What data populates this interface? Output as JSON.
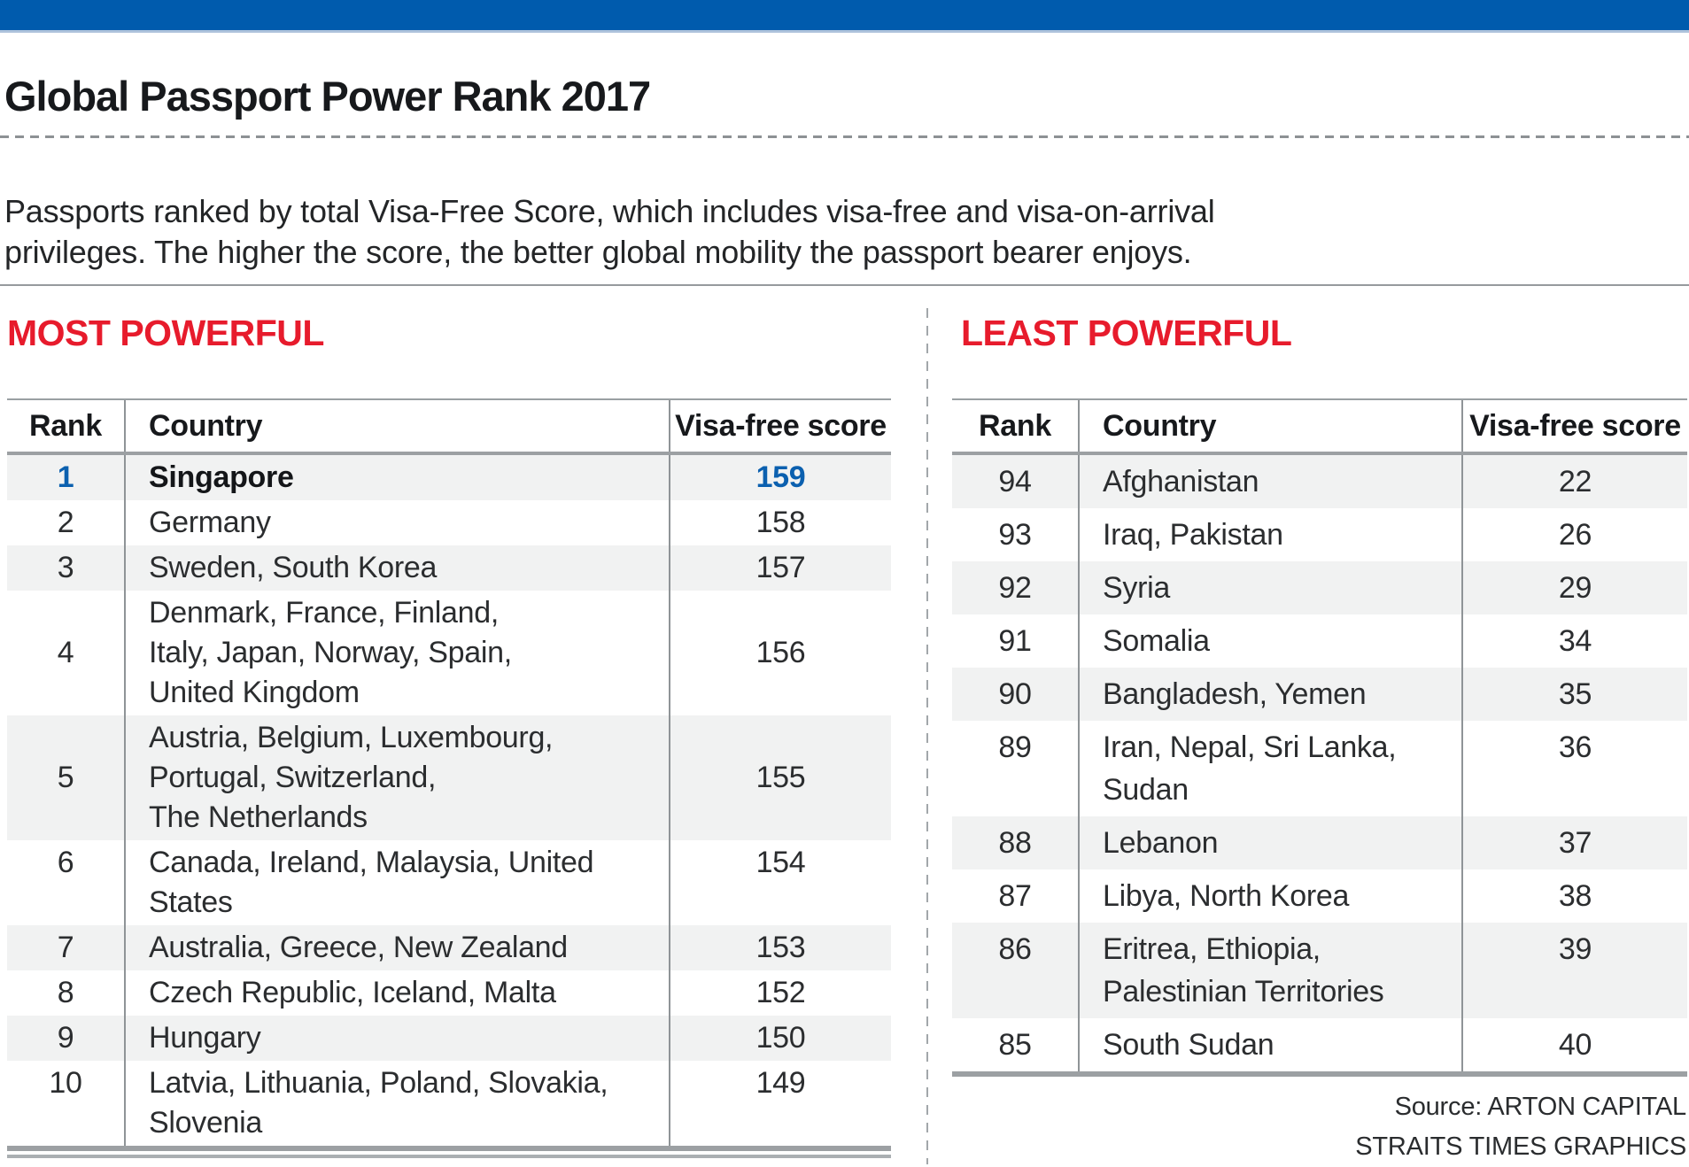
{
  "header": {
    "title": "Global Passport Power Rank 2017",
    "intro": "Passports ranked by total Visa-Free Score, which includes visa-free and visa-on-arrival\nprivileges. The higher the score, the better global mobility the passport bearer enjoys."
  },
  "colors": {
    "top_bar_blue": "#005bad",
    "heading_red": "#e71b2c",
    "highlight_blue": "#0b60af",
    "row_alt_bg": "#f1f2f2",
    "border_gray": "#9ca0a3"
  },
  "tables": [
    {
      "heading": "MOST POWERFUL",
      "columns": {
        "rank": "Rank",
        "country": "Country",
        "score": "Visa-free score"
      },
      "rows": [
        {
          "rank": "1",
          "country": "Singapore",
          "score": "159"
        },
        {
          "rank": "2",
          "country": "Germany",
          "score": "158"
        },
        {
          "rank": "3",
          "country": "Sweden, South Korea",
          "score": "157"
        },
        {
          "rank": "4",
          "country": "Denmark, France, Finland,\nItaly, Japan, Norway, Spain,\nUnited Kingdom",
          "score": "156"
        },
        {
          "rank": "5",
          "country": "Austria, Belgium, Luxembourg,\nPortugal, Switzerland,\nThe Netherlands",
          "score": "155"
        },
        {
          "rank": "6",
          "country": "Canada, Ireland, Malaysia, United\nStates",
          "score": "154"
        },
        {
          "rank": "7",
          "country": "Australia, Greece, New Zealand",
          "score": "153"
        },
        {
          "rank": "8",
          "country": "Czech Republic, Iceland, Malta",
          "score": "152"
        },
        {
          "rank": "9",
          "country": "Hungary",
          "score": "150"
        },
        {
          "rank": "10",
          "country": "Latvia, Lithuania, Poland, Slovakia,\nSlovenia",
          "score": "149"
        }
      ]
    },
    {
      "heading": "LEAST POWERFUL",
      "columns": {
        "rank": "Rank",
        "country": "Country",
        "score": "Visa-free score"
      },
      "rows": [
        {
          "rank": "94",
          "country": "Afghanistan",
          "score": "22"
        },
        {
          "rank": "93",
          "country": "Iraq, Pakistan",
          "score": "26"
        },
        {
          "rank": "92",
          "country": "Syria",
          "score": "29"
        },
        {
          "rank": "91",
          "country": "Somalia",
          "score": "34"
        },
        {
          "rank": "90",
          "country": "Bangladesh, Yemen",
          "score": "35"
        },
        {
          "rank": "89",
          "country": "Iran, Nepal, Sri Lanka,\nSudan",
          "score": "36"
        },
        {
          "rank": "88",
          "country": "Lebanon",
          "score": "37"
        },
        {
          "rank": "87",
          "country": "Libya, North Korea",
          "score": "38"
        },
        {
          "rank": "86",
          "country": "Eritrea, Ethiopia,\nPalestinian Territories",
          "score": "39"
        },
        {
          "rank": "85",
          "country": "South Sudan",
          "score": "40"
        }
      ]
    }
  ],
  "footer": {
    "source": "Source: ARTON CAPITAL",
    "credit": "STRAITS TIMES GRAPHICS"
  },
  "chart_data": [
    {
      "type": "table",
      "title": "MOST POWERFUL",
      "columns": [
        "Rank",
        "Country",
        "Visa-free score"
      ],
      "rows": [
        [
          1,
          "Singapore",
          159
        ],
        [
          2,
          "Germany",
          158
        ],
        [
          3,
          "Sweden, South Korea",
          157
        ],
        [
          4,
          "Denmark, France, Finland, Italy, Japan, Norway, Spain, United Kingdom",
          156
        ],
        [
          5,
          "Austria, Belgium, Luxembourg, Portugal, Switzerland, The Netherlands",
          155
        ],
        [
          6,
          "Canada, Ireland, Malaysia, United States",
          154
        ],
        [
          7,
          "Australia, Greece, New Zealand",
          153
        ],
        [
          8,
          "Czech Republic, Iceland, Malta",
          152
        ],
        [
          9,
          "Hungary",
          150
        ],
        [
          10,
          "Latvia, Lithuania, Poland, Slovakia, Slovenia",
          149
        ]
      ]
    },
    {
      "type": "table",
      "title": "LEAST POWERFUL",
      "columns": [
        "Rank",
        "Country",
        "Visa-free score"
      ],
      "rows": [
        [
          94,
          "Afghanistan",
          22
        ],
        [
          93,
          "Iraq, Pakistan",
          26
        ],
        [
          92,
          "Syria",
          29
        ],
        [
          91,
          "Somalia",
          34
        ],
        [
          90,
          "Bangladesh, Yemen",
          35
        ],
        [
          89,
          "Iran, Nepal, Sri Lanka, Sudan",
          36
        ],
        [
          88,
          "Lebanon",
          37
        ],
        [
          87,
          "Libya, North Korea",
          38
        ],
        [
          86,
          "Eritrea, Ethiopia, Palestinian Territories",
          39
        ],
        [
          85,
          "South Sudan",
          40
        ]
      ]
    }
  ]
}
